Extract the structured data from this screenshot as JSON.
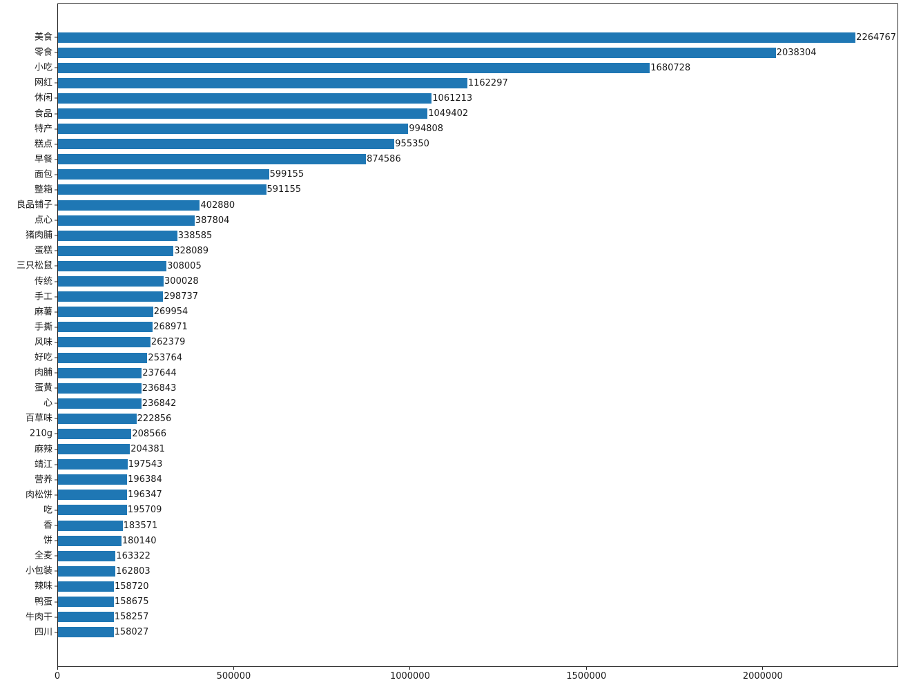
{
  "chart_data": {
    "type": "bar",
    "orientation": "horizontal",
    "title": "",
    "xlabel": "",
    "ylabel": "",
    "grid": false,
    "legend_position": "none",
    "bar_color": "#1f77b4",
    "frame_color": "#262626",
    "text_color": "#1a1a1a",
    "xlim": [
      0,
      2384000
    ],
    "x_ticks": [
      0,
      500000,
      1000000,
      1500000,
      2000000
    ],
    "x_tick_labels": [
      "0",
      "500000",
      "1000000",
      "1500000",
      "2000000"
    ],
    "categories": [
      "美食",
      "零食",
      "小吃",
      "网红",
      "休闲",
      "食品",
      "特产",
      "糕点",
      "早餐",
      "面包",
      "整箱",
      "良品铺子",
      "点心",
      "猪肉脯",
      "蛋糕",
      "三只松鼠",
      "传统",
      "手工",
      "麻薯",
      "手撕",
      "风味",
      "好吃",
      "肉脯",
      "蛋黄",
      "心",
      "百草味",
      "210g",
      "麻辣",
      "靖江",
      "营养",
      "肉松饼",
      "吃",
      "香",
      "饼",
      "全麦",
      "小包装",
      "辣味",
      "鸭蛋",
      "牛肉干",
      "四川"
    ],
    "values": [
      2264767,
      2038304,
      1680728,
      1162297,
      1061213,
      1049402,
      994808,
      955350,
      874586,
      599155,
      591155,
      402880,
      387804,
      338585,
      328089,
      308005,
      300028,
      298737,
      269954,
      268971,
      262379,
      253764,
      237644,
      236843,
      236842,
      222856,
      208566,
      204381,
      197543,
      196384,
      196347,
      195709,
      183571,
      180140,
      163322,
      162803,
      158720,
      158675,
      158257,
      158027
    ],
    "value_labels": [
      "2264767",
      "2038304",
      "1680728",
      "1162297",
      "1061213",
      "1049402",
      "994808",
      "955350",
      "874586",
      "599155",
      "591155",
      "402880",
      "387804",
      "338585",
      "328089",
      "308005",
      "300028",
      "298737",
      "269954",
      "268971",
      "262379",
      "253764",
      "237644",
      "236843",
      "236842",
      "222856",
      "208566",
      "204381",
      "197543",
      "196384",
      "196347",
      "195709",
      "183571",
      "180140",
      "163322",
      "162803",
      "158720",
      "158675",
      "158257",
      "158027"
    ]
  }
}
